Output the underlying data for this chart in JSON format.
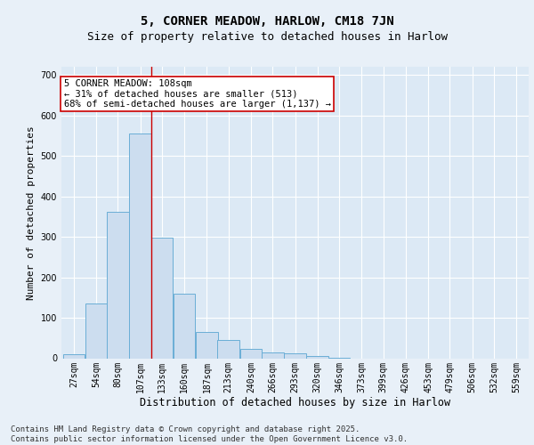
{
  "title": "5, CORNER MEADOW, HARLOW, CM18 7JN",
  "subtitle": "Size of property relative to detached houses in Harlow",
  "xlabel": "Distribution of detached houses by size in Harlow",
  "ylabel": "Number of detached properties",
  "bar_color": "#ccddef",
  "bar_edge_color": "#6aaed6",
  "background_color": "#dce9f5",
  "grid_color": "#ffffff",
  "annotation_box_color": "#cc0000",
  "property_line_color": "#cc0000",
  "annotation_text": "5 CORNER MEADOW: 108sqm\n← 31% of detached houses are smaller (513)\n68% of semi-detached houses are larger (1,137) →",
  "categories": [
    "27sqm",
    "54sqm",
    "80sqm",
    "107sqm",
    "133sqm",
    "160sqm",
    "187sqm",
    "213sqm",
    "240sqm",
    "266sqm",
    "293sqm",
    "320sqm",
    "346sqm",
    "373sqm",
    "399sqm",
    "426sqm",
    "453sqm",
    "479sqm",
    "506sqm",
    "532sqm",
    "559sqm"
  ],
  "bin_edges": [
    27,
    54,
    80,
    107,
    133,
    160,
    187,
    213,
    240,
    266,
    293,
    320,
    346,
    373,
    399,
    426,
    453,
    479,
    506,
    532,
    559
  ],
  "bar_heights": [
    10,
    135,
    362,
    555,
    298,
    160,
    65,
    46,
    22,
    15,
    12,
    5,
    2,
    0,
    0,
    0,
    0,
    0,
    0,
    0,
    0
  ],
  "ylim": [
    0,
    720
  ],
  "yticks": [
    0,
    100,
    200,
    300,
    400,
    500,
    600,
    700
  ],
  "footer": "Contains HM Land Registry data © Crown copyright and database right 2025.\nContains public sector information licensed under the Open Government Licence v3.0.",
  "title_fontsize": 10,
  "subtitle_fontsize": 9,
  "tick_fontsize": 7,
  "ylabel_fontsize": 8,
  "xlabel_fontsize": 8.5,
  "annotation_fontsize": 7.5,
  "footer_fontsize": 6.5,
  "fig_facecolor": "#e8f0f8"
}
